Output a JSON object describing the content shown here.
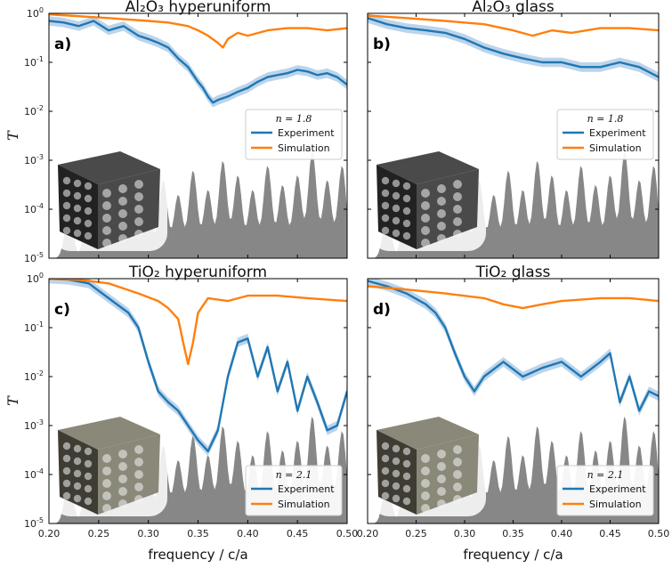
{
  "chart_data": [
    {
      "type": "line",
      "panel_label": "a)",
      "title": "Al₂O₃ hyperuniform",
      "xlabel": "",
      "ylabel": "T",
      "xlim": [
        0.2,
        0.5
      ],
      "ylim_log10": [
        -5,
        0
      ],
      "yscale": "log",
      "legend": {
        "title": "n = 1.8",
        "placement": "lower-right",
        "entries": [
          "Experiment",
          "Simulation"
        ]
      },
      "inset": "rendered porous hyperuniform Al₂O₃ cube",
      "series": [
        {
          "name": "Experiment",
          "color": "#1f77b4",
          "x": [
            0.2,
            0.215,
            0.23,
            0.245,
            0.26,
            0.275,
            0.29,
            0.3,
            0.31,
            0.32,
            0.33,
            0.34,
            0.35,
            0.355,
            0.36,
            0.365,
            0.37,
            0.38,
            0.39,
            0.4,
            0.41,
            0.42,
            0.43,
            0.44,
            0.45,
            0.46,
            0.47,
            0.48,
            0.49,
            0.5
          ],
          "y": [
            0.7,
            0.65,
            0.55,
            0.7,
            0.45,
            0.55,
            0.35,
            0.3,
            0.25,
            0.2,
            0.12,
            0.08,
            0.04,
            0.03,
            0.02,
            0.015,
            0.017,
            0.02,
            0.025,
            0.03,
            0.04,
            0.05,
            0.055,
            0.06,
            0.07,
            0.065,
            0.055,
            0.06,
            0.05,
            0.035
          ]
        },
        {
          "name": "Simulation",
          "color": "#ff7f0e",
          "x": [
            0.2,
            0.22,
            0.24,
            0.26,
            0.28,
            0.3,
            0.32,
            0.34,
            0.35,
            0.36,
            0.37,
            0.375,
            0.38,
            0.39,
            0.4,
            0.42,
            0.44,
            0.46,
            0.48,
            0.5
          ],
          "y": [
            0.95,
            0.9,
            0.85,
            0.8,
            0.75,
            0.7,
            0.65,
            0.55,
            0.45,
            0.35,
            0.25,
            0.2,
            0.3,
            0.4,
            0.35,
            0.45,
            0.5,
            0.5,
            0.45,
            0.5
          ]
        }
      ]
    },
    {
      "type": "line",
      "panel_label": "b)",
      "title": "Al₂O₃ glass",
      "xlabel": "",
      "ylabel": "",
      "xlim": [
        0.2,
        0.5
      ],
      "ylim_log10": [
        -5,
        0
      ],
      "yscale": "log",
      "legend": {
        "title": "n = 1.8",
        "placement": "lower-right",
        "entries": [
          "Experiment",
          "Simulation"
        ]
      },
      "inset": "rendered porous glass Al₂O₃ cube",
      "series": [
        {
          "name": "Experiment",
          "color": "#1f77b4",
          "x": [
            0.2,
            0.22,
            0.24,
            0.26,
            0.28,
            0.3,
            0.32,
            0.34,
            0.36,
            0.38,
            0.4,
            0.42,
            0.44,
            0.46,
            0.48,
            0.5
          ],
          "y": [
            0.8,
            0.6,
            0.5,
            0.45,
            0.4,
            0.3,
            0.2,
            0.15,
            0.12,
            0.1,
            0.1,
            0.08,
            0.08,
            0.1,
            0.08,
            0.05
          ]
        },
        {
          "name": "Simulation",
          "color": "#ff7f0e",
          "x": [
            0.2,
            0.24,
            0.28,
            0.32,
            0.35,
            0.37,
            0.39,
            0.41,
            0.44,
            0.47,
            0.5
          ],
          "y": [
            0.9,
            0.8,
            0.7,
            0.6,
            0.45,
            0.35,
            0.45,
            0.4,
            0.5,
            0.5,
            0.45
          ]
        }
      ]
    },
    {
      "type": "line",
      "panel_label": "c)",
      "title": "TiO₂ hyperuniform",
      "xlabel": "frequency / c/a",
      "ylabel": "T",
      "xlim": [
        0.2,
        0.5
      ],
      "ylim_log10": [
        -5,
        0
      ],
      "yscale": "log",
      "legend": {
        "title": "n = 2.1",
        "placement": "lower-right",
        "entries": [
          "Experiment",
          "Simulation"
        ]
      },
      "inset": "rendered porous hyperuniform TiO₂ cube",
      "series": [
        {
          "name": "Experiment",
          "color": "#1f77b4",
          "x": [
            0.2,
            0.22,
            0.24,
            0.26,
            0.28,
            0.29,
            0.3,
            0.31,
            0.32,
            0.33,
            0.34,
            0.35,
            0.36,
            0.37,
            0.38,
            0.39,
            0.4,
            0.41,
            0.42,
            0.43,
            0.44,
            0.45,
            0.46,
            0.47,
            0.48,
            0.49,
            0.5
          ],
          "y": [
            1.0,
            0.95,
            0.8,
            0.4,
            0.2,
            0.1,
            0.02,
            0.005,
            0.003,
            0.002,
            0.001,
            0.0005,
            0.0003,
            0.0008,
            0.01,
            0.05,
            0.06,
            0.01,
            0.04,
            0.005,
            0.02,
            0.002,
            0.01,
            0.003,
            0.0008,
            0.001,
            0.005
          ]
        },
        {
          "name": "Simulation",
          "color": "#ff7f0e",
          "x": [
            0.2,
            0.23,
            0.26,
            0.29,
            0.31,
            0.32,
            0.33,
            0.335,
            0.34,
            0.345,
            0.35,
            0.36,
            0.38,
            0.4,
            0.43,
            0.46,
            0.5
          ],
          "y": [
            1.0,
            0.95,
            0.8,
            0.5,
            0.35,
            0.25,
            0.15,
            0.05,
            0.018,
            0.05,
            0.2,
            0.4,
            0.35,
            0.45,
            0.45,
            0.4,
            0.35
          ]
        }
      ]
    },
    {
      "type": "line",
      "panel_label": "d)",
      "title": "TiO₂ glass",
      "xlabel": "frequency / c/a",
      "ylabel": "",
      "xlim": [
        0.2,
        0.5
      ],
      "ylim_log10": [
        -5,
        0
      ],
      "yscale": "log",
      "legend": {
        "title": "n = 2.1",
        "placement": "lower-right",
        "entries": [
          "Experiment",
          "Simulation"
        ]
      },
      "inset": "rendered porous glass TiO₂ cube",
      "series": [
        {
          "name": "Experiment",
          "color": "#1f77b4",
          "x": [
            0.2,
            0.22,
            0.24,
            0.26,
            0.27,
            0.28,
            0.29,
            0.3,
            0.31,
            0.32,
            0.34,
            0.36,
            0.38,
            0.4,
            0.42,
            0.44,
            0.45,
            0.46,
            0.47,
            0.48,
            0.49,
            0.5
          ],
          "y": [
            0.9,
            0.7,
            0.5,
            0.3,
            0.2,
            0.1,
            0.03,
            0.01,
            0.005,
            0.01,
            0.02,
            0.01,
            0.015,
            0.02,
            0.01,
            0.02,
            0.03,
            0.003,
            0.01,
            0.002,
            0.005,
            0.004
          ]
        },
        {
          "name": "Simulation",
          "color": "#ff7f0e",
          "x": [
            0.2,
            0.24,
            0.28,
            0.32,
            0.34,
            0.36,
            0.38,
            0.4,
            0.44,
            0.47,
            0.5
          ],
          "y": [
            0.7,
            0.6,
            0.5,
            0.4,
            0.3,
            0.25,
            0.3,
            0.35,
            0.4,
            0.4,
            0.35
          ]
        }
      ]
    }
  ],
  "axes": {
    "x_ticks": [
      "0.20",
      "0.25",
      "0.30",
      "0.35",
      "0.40",
      "0.45",
      "0.50"
    ],
    "y_ticks": [
      {
        "base": "10",
        "exp": "0"
      },
      {
        "base": "10",
        "exp": "-1"
      },
      {
        "base": "10",
        "exp": "-2"
      },
      {
        "base": "10",
        "exp": "-3"
      },
      {
        "base": "10",
        "exp": "-4"
      },
      {
        "base": "10",
        "exp": "-5"
      }
    ]
  },
  "colors": {
    "experiment": "#1f77b4",
    "simulation": "#ff7f0e",
    "dos_background": "#7a7a7a",
    "experiment_band": "#8fb8dc"
  }
}
